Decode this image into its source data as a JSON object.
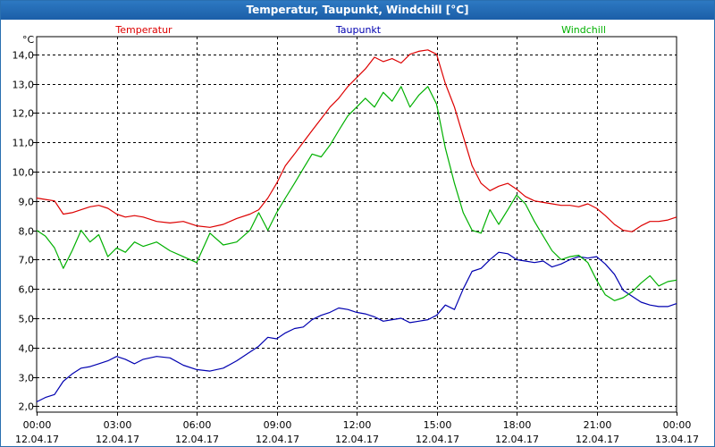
{
  "window": {
    "title": "Temperatur, Taupunkt, Windchill [°C]"
  },
  "chart_data": {
    "type": "line",
    "title": "Temperatur, Taupunkt, Windchill [°C]",
    "ylabel": "°C",
    "xlabel": "",
    "ylim": [
      1.8,
      14.6
    ],
    "xlim": [
      0,
      24
    ],
    "grid": true,
    "yticks": [
      2.0,
      3.0,
      4.0,
      5.0,
      6.0,
      7.0,
      8.0,
      9.0,
      10.0,
      11.0,
      12.0,
      13.0,
      14.0
    ],
    "ytick_labels": [
      "2,0",
      "3,0",
      "4,0",
      "5,0",
      "6,0",
      "7,0",
      "8,0",
      "9,0",
      "10,0",
      "11,0",
      "12,0",
      "13,0",
      "14,0"
    ],
    "xticks": [
      {
        "x": 0,
        "time": "00:00",
        "date": "12.04.17"
      },
      {
        "x": 3,
        "time": "03:00",
        "date": "12.04.17"
      },
      {
        "x": 6,
        "time": "06:00",
        "date": "12.04.17"
      },
      {
        "x": 9,
        "time": "09:00",
        "date": "12.04.17"
      },
      {
        "x": 12,
        "time": "12:00",
        "date": "12.04.17"
      },
      {
        "x": 15,
        "time": "15:00",
        "date": "12.04.17"
      },
      {
        "x": 18,
        "time": "18:00",
        "date": "12.04.17"
      },
      {
        "x": 21,
        "time": "21:00",
        "date": "12.04.17"
      },
      {
        "x": 24,
        "time": "00:00",
        "date": "13.04.17"
      }
    ],
    "legend": [
      "Temperatur",
      "Taupunkt",
      "Windchill"
    ],
    "series": [
      {
        "name": "Temperatur",
        "color": "#dd0000",
        "x": [
          0,
          0.33,
          0.67,
          1,
          1.33,
          1.67,
          2,
          2.33,
          2.67,
          3,
          3.33,
          3.67,
          4,
          4.5,
          5,
          5.5,
          6,
          6.5,
          7,
          7.5,
          8,
          8.33,
          8.67,
          9,
          9.33,
          9.67,
          10,
          10.33,
          10.67,
          11,
          11.33,
          11.67,
          12,
          12.33,
          12.67,
          13,
          13.33,
          13.67,
          14,
          14.33,
          14.67,
          15,
          15.33,
          15.67,
          16,
          16.33,
          16.67,
          17,
          17.33,
          17.67,
          18,
          18.33,
          18.67,
          19,
          19.33,
          19.67,
          20,
          20.33,
          20.67,
          21,
          21.33,
          21.67,
          22,
          22.33,
          22.67,
          23,
          23.33,
          23.67,
          24
        ],
        "values": [
          9.1,
          9.05,
          9.0,
          8.55,
          8.6,
          8.7,
          8.8,
          8.85,
          8.75,
          8.55,
          8.45,
          8.5,
          8.45,
          8.3,
          8.25,
          8.3,
          8.15,
          8.1,
          8.2,
          8.4,
          8.55,
          8.7,
          9.1,
          9.6,
          10.2,
          10.6,
          11.0,
          11.4,
          11.8,
          12.2,
          12.5,
          12.9,
          13.2,
          13.5,
          13.9,
          13.75,
          13.85,
          13.7,
          14.0,
          14.1,
          14.15,
          14.0,
          13.0,
          12.2,
          11.2,
          10.2,
          9.6,
          9.35,
          9.5,
          9.6,
          9.4,
          9.15,
          9.0,
          8.95,
          8.9,
          8.85,
          8.85,
          8.8,
          8.9,
          8.75,
          8.5,
          8.2,
          8.0,
          7.95,
          8.15,
          8.3,
          8.3,
          8.35,
          8.45
        ]
      },
      {
        "name": "Taupunkt",
        "color": "#0000b0",
        "x": [
          0,
          0.33,
          0.67,
          1,
          1.33,
          1.67,
          2,
          2.33,
          2.67,
          3,
          3.33,
          3.67,
          4,
          4.5,
          5,
          5.5,
          6,
          6.5,
          7,
          7.5,
          8,
          8.33,
          8.67,
          9,
          9.33,
          9.67,
          10,
          10.33,
          10.67,
          11,
          11.33,
          11.67,
          12,
          12.33,
          12.67,
          13,
          13.33,
          13.67,
          14,
          14.33,
          14.67,
          15,
          15.33,
          15.67,
          16,
          16.33,
          16.67,
          17,
          17.33,
          17.67,
          18,
          18.33,
          18.67,
          19,
          19.33,
          19.67,
          20,
          20.33,
          20.67,
          21,
          21.33,
          21.67,
          22,
          22.33,
          22.67,
          23,
          23.33,
          23.67,
          24
        ],
        "values": [
          2.15,
          2.3,
          2.4,
          2.85,
          3.1,
          3.3,
          3.35,
          3.45,
          3.55,
          3.7,
          3.6,
          3.45,
          3.6,
          3.7,
          3.65,
          3.4,
          3.25,
          3.2,
          3.3,
          3.55,
          3.85,
          4.05,
          4.35,
          4.3,
          4.5,
          4.65,
          4.7,
          4.95,
          5.1,
          5.2,
          5.35,
          5.3,
          5.2,
          5.15,
          5.05,
          4.9,
          4.95,
          5.0,
          4.85,
          4.9,
          4.95,
          5.1,
          5.45,
          5.3,
          6.0,
          6.6,
          6.7,
          7.0,
          7.25,
          7.2,
          7.0,
          6.95,
          6.9,
          6.95,
          6.75,
          6.85,
          7.0,
          7.1,
          7.05,
          7.1,
          6.85,
          6.5,
          5.95,
          5.75,
          5.55,
          5.45,
          5.4,
          5.4,
          5.5
        ]
      },
      {
        "name": "Windchill",
        "color": "#00b000",
        "x": [
          0,
          0.33,
          0.67,
          1,
          1.33,
          1.67,
          2,
          2.33,
          2.67,
          3,
          3.33,
          3.67,
          4,
          4.5,
          5,
          5.5,
          6,
          6.5,
          7,
          7.5,
          8,
          8.33,
          8.67,
          9,
          9.33,
          9.67,
          10,
          10.33,
          10.67,
          11,
          11.33,
          11.67,
          12,
          12.33,
          12.67,
          13,
          13.33,
          13.67,
          14,
          14.33,
          14.67,
          15,
          15.33,
          15.67,
          16,
          16.33,
          16.67,
          17,
          17.33,
          17.67,
          18,
          18.33,
          18.67,
          19,
          19.33,
          19.67,
          20,
          20.33,
          20.67,
          21,
          21.33,
          21.67,
          22,
          22.33,
          22.67,
          23,
          23.33,
          23.67,
          24
        ],
        "values": [
          8.0,
          7.8,
          7.4,
          6.7,
          7.3,
          8.0,
          7.6,
          7.85,
          7.1,
          7.4,
          7.25,
          7.6,
          7.45,
          7.6,
          7.3,
          7.1,
          6.9,
          7.9,
          7.5,
          7.6,
          8.0,
          8.6,
          8.0,
          8.6,
          9.1,
          9.6,
          10.1,
          10.6,
          10.5,
          10.9,
          11.4,
          11.9,
          12.2,
          12.5,
          12.2,
          12.7,
          12.4,
          12.9,
          12.2,
          12.6,
          12.9,
          12.3,
          10.8,
          9.6,
          8.6,
          8.0,
          7.9,
          8.7,
          8.2,
          8.7,
          9.2,
          8.9,
          8.3,
          7.8,
          7.3,
          7.0,
          7.1,
          7.15,
          6.9,
          6.3,
          5.8,
          5.6,
          5.7,
          5.9,
          6.2,
          6.45,
          6.1,
          6.25,
          6.3
        ]
      }
    ]
  }
}
